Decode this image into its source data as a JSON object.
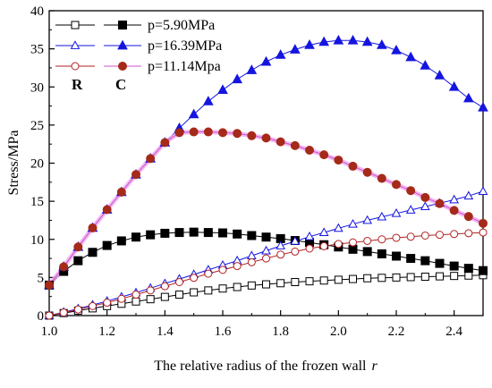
{
  "chart_data": {
    "type": "line",
    "xlabel": "The relative radius of the frozen wall",
    "xlabel_var": "r",
    "ylabel": "Stress/MPa",
    "xlim": [
      1.0,
      2.5
    ],
    "ylim": [
      0,
      40
    ],
    "x_ticks": [
      "1.0",
      "1.2",
      "1.4",
      "1.6",
      "1.8",
      "2.0",
      "2.2",
      "2.4"
    ],
    "y_ticks": [
      "0",
      "5",
      "10",
      "15",
      "20",
      "25",
      "30",
      "35",
      "40"
    ],
    "legend_placement": "top-left",
    "legend_group_labels": [
      "R",
      "C"
    ],
    "x": [
      1.0,
      1.05,
      1.1,
      1.15,
      1.2,
      1.25,
      1.3,
      1.35,
      1.4,
      1.45,
      1.5,
      1.55,
      1.6,
      1.65,
      1.7,
      1.75,
      1.8,
      1.85,
      1.9,
      1.95,
      2.0,
      2.05,
      2.1,
      2.15,
      2.2,
      2.25,
      2.3,
      2.35,
      2.4,
      2.45,
      2.5
    ],
    "series": [
      {
        "name": "p=5.90MPa",
        "group": "R",
        "marker": "square",
        "filled": false,
        "color": "#000000",
        "line_color": "#000000",
        "values": [
          0,
          0.33,
          0.65,
          0.95,
          1.25,
          1.55,
          1.85,
          2.15,
          2.45,
          2.75,
          3.05,
          3.3,
          3.55,
          3.75,
          3.95,
          4.1,
          4.25,
          4.4,
          4.5,
          4.6,
          4.7,
          4.8,
          4.9,
          4.95,
          5.0,
          5.05,
          5.1,
          5.15,
          5.2,
          5.25,
          5.3
        ]
      },
      {
        "name": "p=5.90MPa",
        "group": "C",
        "marker": "square",
        "filled": true,
        "color": "#000000",
        "line_color": "#000000",
        "values": [
          4.0,
          5.8,
          7.2,
          8.3,
          9.2,
          9.8,
          10.3,
          10.6,
          10.8,
          10.9,
          10.95,
          10.9,
          10.85,
          10.7,
          10.5,
          10.3,
          10.1,
          9.85,
          9.6,
          9.3,
          9.0,
          8.7,
          8.4,
          8.1,
          7.8,
          7.5,
          7.2,
          6.85,
          6.5,
          6.2,
          5.9
        ]
      },
      {
        "name": "p=16.39MPa",
        "group": "R",
        "marker": "triangle",
        "filled": false,
        "color": "#1515e0",
        "line_color": "#1515e0",
        "values": [
          0,
          0.45,
          0.9,
          1.4,
          1.9,
          2.45,
          3.0,
          3.6,
          4.2,
          4.8,
          5.4,
          6.0,
          6.6,
          7.2,
          7.85,
          8.5,
          9.15,
          9.75,
          10.35,
          10.9,
          11.45,
          12.0,
          12.5,
          12.95,
          13.4,
          13.85,
          14.3,
          14.75,
          15.2,
          15.7,
          16.3
        ]
      },
      {
        "name": "p=16.39MPa",
        "group": "C",
        "marker": "triangle",
        "filled": true,
        "color": "#1515e0",
        "line_color": "#1515e0",
        "values": [
          4.0,
          6.4,
          9.0,
          11.5,
          13.9,
          16.2,
          18.5,
          20.6,
          22.7,
          24.6,
          26.4,
          28.1,
          29.6,
          31.0,
          32.2,
          33.3,
          34.2,
          34.9,
          35.5,
          35.9,
          36.1,
          36.1,
          35.9,
          35.5,
          34.8,
          33.9,
          32.8,
          31.5,
          30.0,
          28.5,
          27.3
        ]
      },
      {
        "name": "p=11.14Mpa",
        "group": "R",
        "marker": "circle",
        "filled": false,
        "color": "#b22222",
        "line_color": "#b22222",
        "values": [
          0,
          0.4,
          0.8,
          1.25,
          1.7,
          2.2,
          2.75,
          3.3,
          3.85,
          4.4,
          4.95,
          5.5,
          6.0,
          6.5,
          7.0,
          7.5,
          8.0,
          8.4,
          8.8,
          9.1,
          9.4,
          9.6,
          9.8,
          10.0,
          10.2,
          10.35,
          10.5,
          10.6,
          10.7,
          10.8,
          10.9
        ]
      },
      {
        "name": "p=11.14Mpa",
        "group": "C",
        "marker": "circle",
        "filled": true,
        "color": "#a52a1a",
        "line_color": "#cc55cc",
        "values": [
          4.0,
          6.4,
          9.0,
          11.5,
          13.9,
          16.2,
          18.5,
          20.6,
          22.7,
          24.0,
          24.1,
          24.1,
          24.0,
          23.9,
          23.6,
          23.3,
          22.8,
          22.3,
          21.7,
          21.1,
          20.4,
          19.6,
          18.8,
          18.0,
          17.2,
          16.4,
          15.5,
          14.7,
          13.8,
          13.0,
          12.1
        ]
      }
    ]
  }
}
